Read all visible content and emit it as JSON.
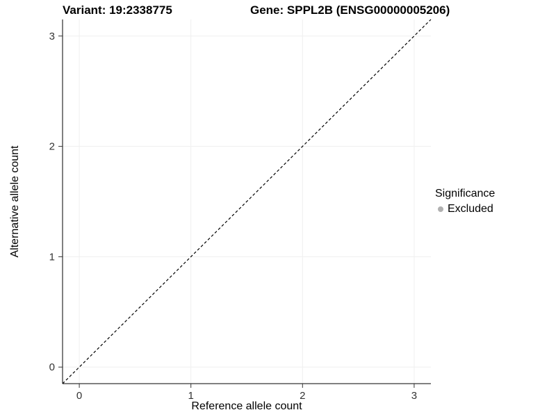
{
  "chart_data": {
    "type": "scatter",
    "titles": [
      "Variant: 19:2338775",
      "Gene: SPPL2B (ENSG00000005206)"
    ],
    "xlabel": "Reference allele count",
    "ylabel": "Alternative allele count",
    "xlim": [
      -0.15,
      3.15
    ],
    "ylim": [
      -0.15,
      3.15
    ],
    "xticks": [
      0,
      1,
      2,
      3
    ],
    "yticks": [
      0,
      1,
      2,
      3
    ],
    "grid": true,
    "points": [],
    "identity_line": {
      "slope": 1,
      "intercept": 0,
      "style": "dashed",
      "color": "#000000"
    },
    "legend": {
      "title": "Significance",
      "position": "right",
      "entries": [
        {
          "label": "Excluded",
          "color": "#b0b0b0"
        }
      ]
    }
  }
}
